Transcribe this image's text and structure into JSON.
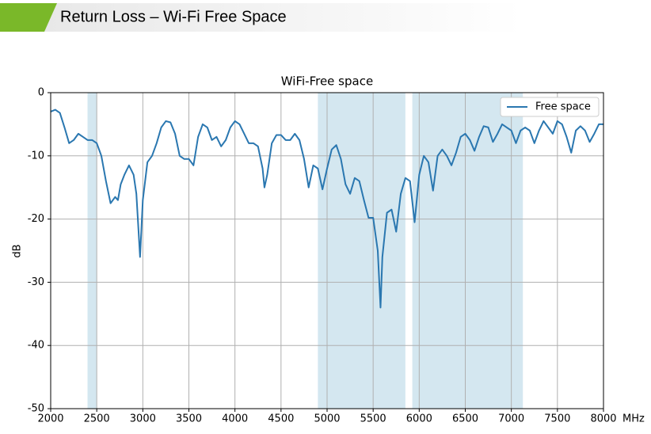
{
  "slide_title": "Return Loss – Wi-Fi Free Space",
  "chart_data": {
    "type": "line",
    "title": "WiFi-Free space",
    "ylabel": "dB",
    "xlabel": "MHz",
    "x": [
      2000,
      2050,
      2100,
      2150,
      2200,
      2250,
      2300,
      2350,
      2400,
      2450,
      2500,
      2550,
      2600,
      2650,
      2700,
      2730,
      2760,
      2800,
      2850,
      2900,
      2930,
      2970,
      3000,
      3050,
      3100,
      3150,
      3200,
      3250,
      3300,
      3350,
      3400,
      3450,
      3500,
      3550,
      3600,
      3650,
      3700,
      3750,
      3800,
      3850,
      3900,
      3950,
      4000,
      4050,
      4100,
      4150,
      4200,
      4250,
      4300,
      4320,
      4350,
      4400,
      4450,
      4500,
      4550,
      4600,
      4650,
      4700,
      4750,
      4800,
      4850,
      4900,
      4950,
      5000,
      5050,
      5100,
      5150,
      5200,
      5250,
      5300,
      5350,
      5400,
      5450,
      5500,
      5550,
      5580,
      5600,
      5650,
      5700,
      5750,
      5800,
      5850,
      5900,
      5950,
      6000,
      6050,
      6100,
      6150,
      6200,
      6250,
      6300,
      6350,
      6400,
      6450,
      6500,
      6550,
      6600,
      6650,
      6700,
      6750,
      6800,
      6850,
      6900,
      6950,
      7000,
      7050,
      7100,
      7150,
      7200,
      7250,
      7300,
      7350,
      7400,
      7450,
      7500,
      7550,
      7600,
      7650,
      7700,
      7750,
      7800,
      7850,
      7900,
      7950,
      8000
    ],
    "series": [
      {
        "name": "Free space",
        "color": "#2a77b0",
        "values": [
          -3,
          -2.7,
          -3.2,
          -5.5,
          -8,
          -7.5,
          -6.5,
          -7,
          -7.5,
          -7.5,
          -8,
          -10,
          -14,
          -17.5,
          -16.5,
          -17,
          -14.5,
          -13,
          -11.5,
          -13,
          -16,
          -26,
          -17,
          -11,
          -10,
          -8,
          -5.5,
          -4.5,
          -4.7,
          -6.5,
          -10,
          -10.5,
          -10.5,
          -11.5,
          -7,
          -5,
          -5.5,
          -7.5,
          -7,
          -8.5,
          -7.5,
          -5.5,
          -4.5,
          -5,
          -6.5,
          -8,
          -8,
          -8.5,
          -12,
          -15,
          -13,
          -8,
          -6.7,
          -6.7,
          -7.5,
          -7.5,
          -6.5,
          -7.5,
          -10.5,
          -15,
          -11.5,
          -12,
          -15.3,
          -12,
          -9,
          -8.3,
          -10.5,
          -14.5,
          -16,
          -13.5,
          -14,
          -17,
          -19.8,
          -19.8,
          -25,
          -34,
          -26,
          -19,
          -18.5,
          -22,
          -16,
          -13.5,
          -14,
          -20.5,
          -13,
          -10,
          -11,
          -15.5,
          -10,
          -9,
          -10,
          -11.5,
          -9.5,
          -7,
          -6.5,
          -7.5,
          -9.2,
          -7,
          -5.3,
          -5.5,
          -7.8,
          -6.5,
          -5,
          -5.5,
          -6,
          -8,
          -6,
          -5.5,
          -6,
          -8,
          -6,
          -4.5,
          -5.5,
          -6.5,
          -4.5,
          -5,
          -7,
          -9.5,
          -6,
          -5.3,
          -6,
          -7.8,
          -6.5,
          -5,
          -5
        ]
      }
    ],
    "bands": [
      [
        2400,
        2500
      ],
      [
        4900,
        5850
      ],
      [
        5925,
        7125
      ]
    ],
    "band_color": "#d4e7f0",
    "xlim": [
      2000,
      8000
    ],
    "ylim": [
      -50,
      0
    ],
    "xticks": [
      2000,
      2500,
      3000,
      3500,
      4000,
      4500,
      5000,
      5500,
      6000,
      6500,
      7000,
      7500,
      8000
    ],
    "yticks": [
      0,
      -10,
      -20,
      -30,
      -40,
      -50
    ],
    "grid": true,
    "legend": "upper right"
  }
}
